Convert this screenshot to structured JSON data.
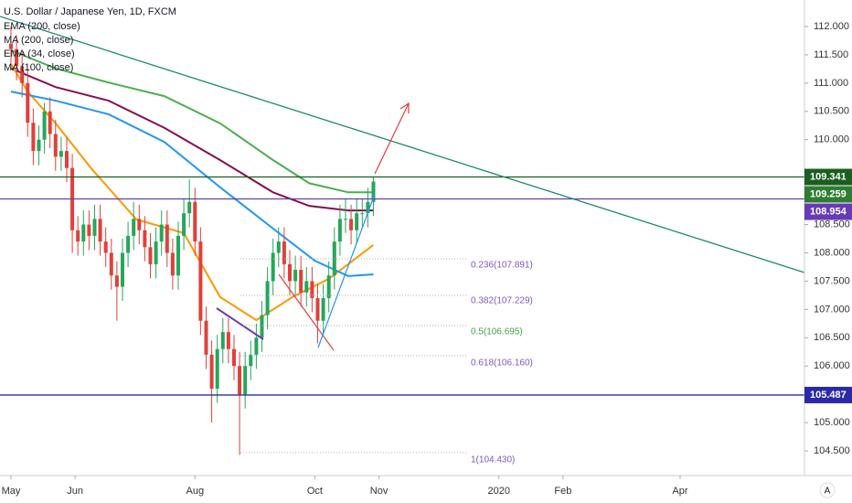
{
  "chart_data": {
    "type": "candlestick",
    "title": "U.S. Dollar / Japanese Yen, 1D, FXCM",
    "xlim": [
      -3.93,
      284.6
    ],
    "ylim": [
      104.064,
      112.469
    ],
    "xticks": [
      {
        "value": 0,
        "label": "May"
      },
      {
        "value": 23,
        "label": "Jun"
      },
      {
        "value": 66,
        "label": "Aug"
      },
      {
        "value": 109,
        "label": "Oct"
      },
      {
        "value": 132,
        "label": "Nov"
      },
      {
        "value": 175,
        "label": "2020"
      },
      {
        "value": 198,
        "label": "Feb"
      },
      {
        "value": 240,
        "label": "Apr"
      }
    ],
    "yticks": [
      {
        "value": 104.5,
        "label": "104.500"
      },
      {
        "value": 105,
        "label": "105.000"
      },
      {
        "value": 105.5,
        "label": "105.500"
      },
      {
        "value": 106,
        "label": "106.000"
      },
      {
        "value": 106.5,
        "label": "106.500"
      },
      {
        "value": 107,
        "label": "107.000"
      },
      {
        "value": 107.5,
        "label": "107.500"
      },
      {
        "value": 108,
        "label": "108.000"
      },
      {
        "value": 108.5,
        "label": "108.500"
      },
      {
        "value": 110,
        "label": "110.000"
      },
      {
        "value": 110.5,
        "label": "110.500"
      },
      {
        "value": 111,
        "label": "111.000"
      },
      {
        "value": 111.5,
        "label": "111.500"
      },
      {
        "value": 112,
        "label": "112.000"
      }
    ],
    "up_color": "#26a65b",
    "down_color": "#e0403a",
    "candles": {
      "x": [
        0,
        2,
        4,
        6,
        8,
        10,
        12,
        14,
        16,
        18,
        20,
        22,
        24,
        26,
        28,
        30,
        32,
        34,
        36,
        38,
        40,
        42,
        44,
        46,
        48,
        50,
        52,
        54,
        56,
        58,
        60,
        62,
        64,
        66,
        68,
        70,
        72,
        74,
        76,
        78,
        80,
        82,
        84,
        86,
        88,
        90,
        92,
        94,
        96,
        98,
        100,
        102,
        104,
        106,
        108,
        110,
        112,
        114,
        116,
        118,
        120,
        122,
        124,
        126,
        128,
        130
      ],
      "open": [
        111.7,
        111.6,
        111.3,
        111.0,
        110.3,
        109.8,
        110.0,
        110.5,
        110.1,
        109.7,
        109.8,
        109.5,
        108.4,
        108.2,
        108.5,
        108.3,
        108.6,
        108.2,
        108.0,
        107.6,
        107.4,
        108.0,
        108.3,
        108.6,
        108.4,
        108.1,
        107.8,
        108.2,
        108.5,
        108.0,
        107.6,
        108.3,
        108.7,
        108.9,
        108.2,
        106.8,
        106.2,
        105.6,
        106.3,
        106.6,
        106.3,
        106.0,
        105.5,
        106.0,
        106.2,
        106.5,
        106.9,
        107.5,
        108.0,
        108.2,
        107.8,
        107.5,
        107.7,
        107.3,
        107.5,
        107.2,
        106.8,
        107.2,
        107.6,
        108.2,
        108.6,
        108.6,
        108.4,
        108.7,
        108.7,
        108.9
      ],
      "high": [
        112.0,
        111.85,
        111.55,
        111.25,
        110.55,
        110.25,
        110.65,
        110.75,
        110.35,
        110.05,
        110.05,
        109.75,
        108.65,
        108.75,
        108.75,
        108.85,
        108.85,
        108.45,
        108.25,
        107.85,
        108.25,
        108.55,
        108.9,
        108.85,
        108.65,
        108.35,
        108.45,
        108.75,
        108.75,
        108.25,
        108.55,
        108.95,
        109.3,
        109.15,
        108.45,
        107.05,
        106.45,
        106.55,
        106.85,
        106.85,
        106.55,
        106.25,
        106.25,
        106.45,
        106.75,
        107.15,
        107.75,
        108.25,
        108.45,
        108.45,
        108.05,
        107.95,
        107.95,
        107.75,
        107.75,
        107.45,
        107.45,
        107.85,
        108.45,
        108.85,
        108.95,
        108.85,
        108.95,
        108.95,
        109.15,
        109.35
      ],
      "low": [
        111.35,
        111.05,
        110.75,
        110.05,
        109.55,
        109.55,
        109.75,
        109.85,
        109.45,
        109.45,
        109.25,
        108.0,
        107.95,
        107.95,
        108.05,
        108.05,
        107.95,
        107.75,
        107.35,
        106.8,
        107.15,
        107.75,
        108.05,
        108.15,
        107.85,
        107.55,
        107.55,
        107.95,
        107.75,
        107.35,
        107.35,
        108.05,
        108.45,
        107.95,
        106.55,
        105.95,
        105.0,
        105.35,
        106.05,
        106.05,
        105.75,
        104.43,
        105.25,
        105.75,
        105.95,
        106.25,
        106.65,
        107.25,
        107.75,
        107.55,
        107.25,
        107.25,
        107.05,
        107.05,
        106.95,
        106.4,
        106.55,
        106.95,
        107.35,
        107.95,
        108.35,
        108.15,
        108.15,
        108.45,
        108.45,
        108.65
      ],
      "close": [
        111.6,
        111.3,
        111.0,
        110.3,
        109.8,
        110.0,
        110.5,
        110.1,
        109.7,
        109.8,
        109.5,
        108.4,
        108.2,
        108.5,
        108.3,
        108.6,
        108.2,
        108.0,
        107.6,
        107.4,
        108.0,
        108.3,
        108.6,
        108.4,
        108.1,
        107.8,
        108.2,
        108.5,
        108.0,
        107.6,
        108.3,
        108.7,
        108.9,
        108.2,
        106.8,
        106.2,
        105.6,
        106.3,
        106.6,
        106.3,
        106.0,
        105.5,
        106.0,
        106.2,
        106.5,
        106.9,
        107.5,
        108.0,
        108.2,
        107.8,
        107.5,
        107.7,
        107.3,
        107.5,
        107.2,
        106.8,
        107.2,
        107.6,
        108.2,
        108.6,
        108.6,
        108.4,
        108.7,
        108.7,
        108.9,
        109.26
      ]
    },
    "series": [
      {
        "name": "EMA (200, close)",
        "color": "#4caf50",
        "x": [
          0,
          16,
          35,
          55,
          75,
          94,
          107,
          121,
          130
        ],
        "values": [
          111.58,
          111.26,
          111.01,
          110.77,
          110.29,
          109.64,
          109.23,
          109.07,
          109.07
        ]
      },
      {
        "name": "MA (200, close)",
        "color": "#880e4f",
        "x": [
          0,
          16,
          35,
          55,
          75,
          94,
          107,
          121,
          130
        ],
        "values": [
          111.26,
          110.93,
          110.69,
          110.21,
          109.64,
          109.07,
          108.83,
          108.75,
          108.75
        ]
      },
      {
        "name": "EMA (34, close)",
        "color": "#ff9800",
        "x": [
          0,
          6,
          16,
          29,
          45,
          62,
          75,
          88,
          101,
          114,
          130
        ],
        "values": [
          111.34,
          110.85,
          110.29,
          109.48,
          108.59,
          108.35,
          107.22,
          106.81,
          107.22,
          107.54,
          108.14
        ]
      },
      {
        "name": "MA (100, close)",
        "color": "#2196f3",
        "x": [
          0,
          16,
          35,
          55,
          75,
          94,
          109,
          121,
          130
        ],
        "values": [
          110.85,
          110.69,
          110.45,
          109.96,
          109.16,
          108.43,
          107.86,
          107.59,
          107.62
        ]
      }
    ],
    "price_levels": [
      {
        "value": 109.341,
        "color": "#1b5e20",
        "line": true
      },
      {
        "value": 109.259,
        "color": "#2e7d32",
        "line": false
      },
      {
        "value": 108.954,
        "color": "#673ab7",
        "line": true
      },
      {
        "value": 105.487,
        "color": "#2a2aa8",
        "line": true
      }
    ],
    "fib_labels": [
      "0.236(107.891)",
      "0.382(107.229)",
      "0.5(106.695)",
      "0.618(106.160)",
      "1(104.430)"
    ]
  }
}
